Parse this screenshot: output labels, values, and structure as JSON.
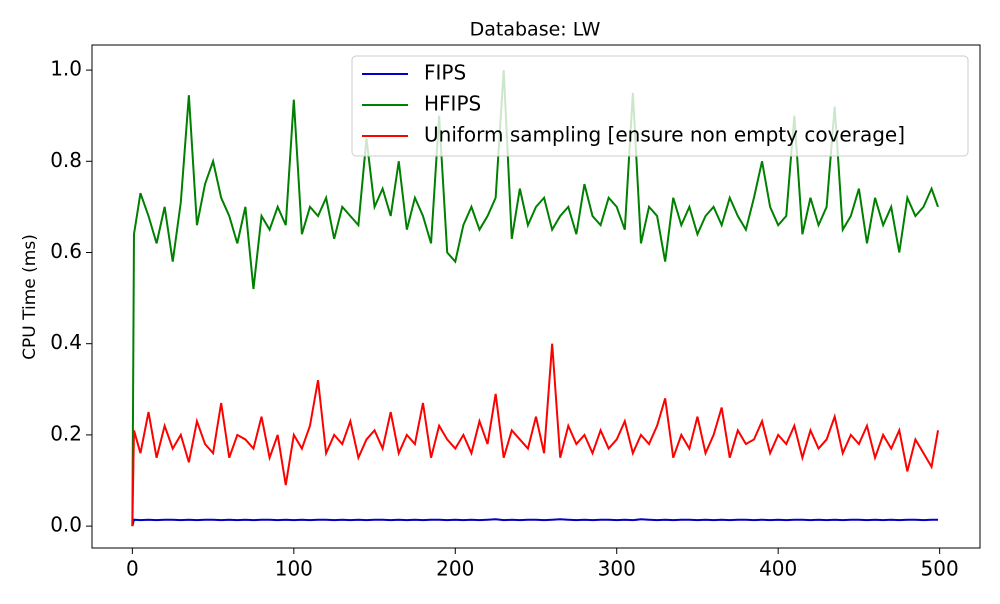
{
  "chart_data": {
    "type": "line",
    "title": "Database: LW",
    "ylabel": "CPU Time (ms)",
    "x": [
      0,
      1,
      5,
      10,
      15,
      20,
      25,
      30,
      35,
      40,
      45,
      50,
      55,
      60,
      65,
      70,
      75,
      80,
      85,
      90,
      95,
      100,
      105,
      110,
      115,
      120,
      125,
      130,
      135,
      140,
      145,
      150,
      155,
      160,
      165,
      170,
      175,
      180,
      185,
      190,
      195,
      200,
      205,
      210,
      215,
      220,
      225,
      230,
      235,
      240,
      245,
      250,
      255,
      260,
      265,
      270,
      275,
      280,
      285,
      290,
      295,
      300,
      305,
      310,
      315,
      320,
      325,
      330,
      335,
      340,
      345,
      350,
      355,
      360,
      365,
      370,
      375,
      380,
      385,
      390,
      395,
      400,
      405,
      410,
      415,
      420,
      425,
      430,
      435,
      440,
      445,
      450,
      455,
      460,
      465,
      470,
      475,
      480,
      485,
      490,
      495,
      499
    ],
    "series": [
      {
        "name": "FIPS",
        "color": "#0000cc",
        "values": [
          0,
          0.014,
          0.013,
          0.014,
          0.013,
          0.014,
          0.014,
          0.013,
          0.014,
          0.013,
          0.014,
          0.014,
          0.013,
          0.014,
          0.013,
          0.014,
          0.013,
          0.014,
          0.014,
          0.013,
          0.014,
          0.013,
          0.014,
          0.013,
          0.014,
          0.014,
          0.013,
          0.014,
          0.013,
          0.014,
          0.013,
          0.014,
          0.014,
          0.013,
          0.014,
          0.013,
          0.014,
          0.013,
          0.014,
          0.014,
          0.013,
          0.014,
          0.013,
          0.014,
          0.013,
          0.014,
          0.015,
          0.013,
          0.014,
          0.013,
          0.014,
          0.014,
          0.013,
          0.014,
          0.015,
          0.014,
          0.013,
          0.014,
          0.013,
          0.014,
          0.014,
          0.013,
          0.014,
          0.013,
          0.015,
          0.014,
          0.013,
          0.014,
          0.013,
          0.014,
          0.014,
          0.013,
          0.014,
          0.013,
          0.014,
          0.013,
          0.014,
          0.014,
          0.013,
          0.014,
          0.013,
          0.014,
          0.013,
          0.014,
          0.014,
          0.013,
          0.014,
          0.013,
          0.014,
          0.013,
          0.014,
          0.014,
          0.013,
          0.014,
          0.013,
          0.014,
          0.013,
          0.014,
          0.014,
          0.013,
          0.014,
          0.014
        ]
      },
      {
        "name": "HFIPS",
        "color": "#008000",
        "values": [
          0,
          0.64,
          0.73,
          0.68,
          0.62,
          0.7,
          0.58,
          0.71,
          0.945,
          0.66,
          0.75,
          0.8,
          0.72,
          0.68,
          0.62,
          0.7,
          0.52,
          0.68,
          0.65,
          0.7,
          0.66,
          0.935,
          0.64,
          0.7,
          0.68,
          0.72,
          0.63,
          0.7,
          0.68,
          0.66,
          0.85,
          0.7,
          0.74,
          0.68,
          0.8,
          0.65,
          0.72,
          0.68,
          0.62,
          0.9,
          0.6,
          0.58,
          0.66,
          0.7,
          0.65,
          0.68,
          0.72,
          1.0,
          0.63,
          0.74,
          0.66,
          0.7,
          0.72,
          0.65,
          0.68,
          0.7,
          0.64,
          0.75,
          0.68,
          0.66,
          0.72,
          0.7,
          0.65,
          0.95,
          0.62,
          0.7,
          0.68,
          0.58,
          0.72,
          0.66,
          0.7,
          0.64,
          0.68,
          0.7,
          0.66,
          0.72,
          0.68,
          0.65,
          0.72,
          0.8,
          0.7,
          0.66,
          0.68,
          0.9,
          0.64,
          0.72,
          0.66,
          0.7,
          0.92,
          0.65,
          0.68,
          0.74,
          0.62,
          0.72,
          0.66,
          0.7,
          0.6,
          0.72,
          0.68,
          0.7,
          0.74,
          0.7
        ]
      },
      {
        "name": "Uniform sampling [ensure non empty coverage]",
        "color": "#ff0000",
        "values": [
          0,
          0.21,
          0.16,
          0.25,
          0.15,
          0.22,
          0.17,
          0.2,
          0.14,
          0.23,
          0.18,
          0.16,
          0.27,
          0.15,
          0.2,
          0.19,
          0.17,
          0.24,
          0.15,
          0.2,
          0.09,
          0.2,
          0.17,
          0.22,
          0.32,
          0.16,
          0.2,
          0.18,
          0.23,
          0.15,
          0.19,
          0.21,
          0.17,
          0.25,
          0.16,
          0.2,
          0.18,
          0.27,
          0.15,
          0.22,
          0.19,
          0.17,
          0.2,
          0.16,
          0.23,
          0.18,
          0.29,
          0.15,
          0.21,
          0.19,
          0.17,
          0.24,
          0.16,
          0.4,
          0.15,
          0.22,
          0.18,
          0.2,
          0.16,
          0.21,
          0.17,
          0.19,
          0.23,
          0.16,
          0.2,
          0.18,
          0.22,
          0.28,
          0.15,
          0.2,
          0.17,
          0.24,
          0.16,
          0.2,
          0.26,
          0.15,
          0.21,
          0.18,
          0.19,
          0.23,
          0.16,
          0.2,
          0.18,
          0.22,
          0.15,
          0.21,
          0.17,
          0.19,
          0.24,
          0.16,
          0.2,
          0.18,
          0.22,
          0.15,
          0.2,
          0.17,
          0.21,
          0.12,
          0.19,
          0.16,
          0.13,
          0.21
        ]
      }
    ],
    "xlim": [
      -25,
      525
    ],
    "xticks": [
      0,
      100,
      200,
      300,
      400,
      500
    ],
    "ylim": [
      -0.048,
      1.055
    ],
    "yticks": [
      {
        "value": 0,
        "label": "0.0"
      },
      0.2,
      0.4,
      0.6,
      0.8,
      {
        "value": 1,
        "label": "1.0"
      }
    ],
    "legend": "upper right"
  }
}
